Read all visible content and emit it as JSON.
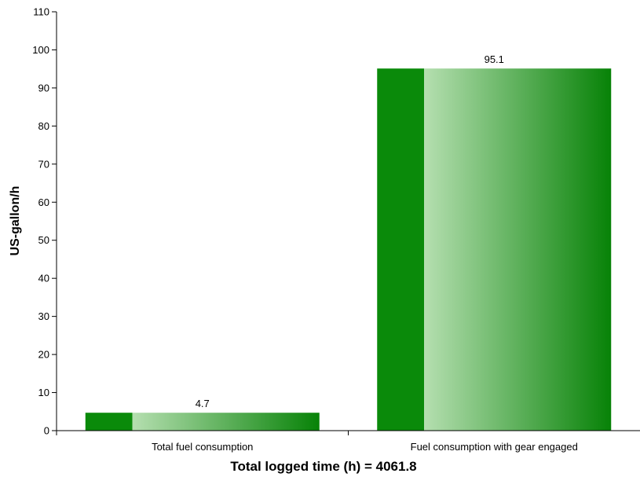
{
  "chart_data": {
    "type": "bar",
    "categories": [
      "Total fuel consumption",
      "Fuel consumption with gear engaged"
    ],
    "values": [
      4.7,
      95.1
    ],
    "value_labels": [
      "4.7",
      "95.1"
    ],
    "xlabel": "Total logged time (h) = 4061.8",
    "ylabel": "US-gallon/h",
    "ylim": [
      0,
      110
    ],
    "yticks": [
      0,
      10,
      20,
      30,
      40,
      50,
      60,
      70,
      80,
      90,
      100,
      110
    ],
    "grid": false,
    "legend": "none",
    "colors": {
      "bar_dark": "#0a8a0a",
      "bar_light": "#b5dfb0",
      "bar_end": "#078207"
    }
  }
}
